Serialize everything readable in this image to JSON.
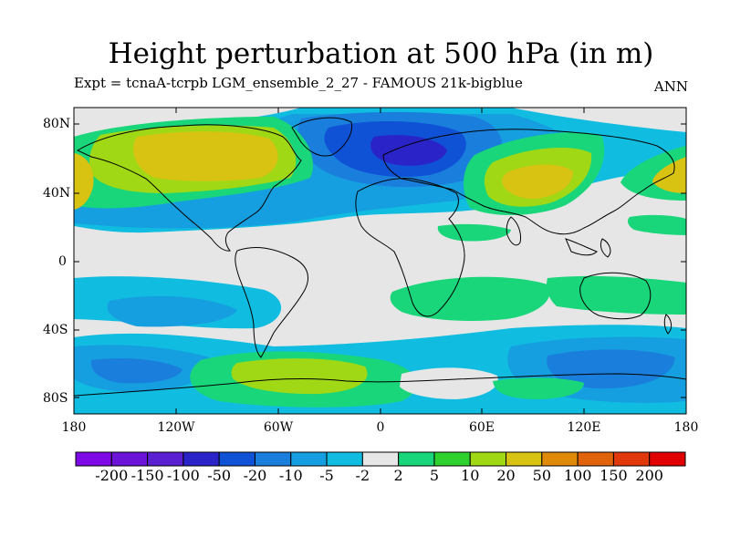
{
  "title": "Height perturbation at 500 hPa (in m)",
  "subtitle_left": "Expt = tcnaA-tcrpb",
  "subtitle_center": "LGM_ensemble_2_27 - FAMOUS 21k-bigblue",
  "subtitle_right": "ANN",
  "y_axis_labels": [
    "80N",
    "40N",
    "0",
    "40S",
    "80S"
  ],
  "x_axis_labels": [
    "180",
    "120W",
    "60W",
    "0",
    "60E",
    "120E",
    "180"
  ],
  "colorbar": {
    "labels": [
      "-200",
      "-150",
      "-100",
      "-50",
      "-20",
      "-10",
      "-5",
      "-2",
      "2",
      "5",
      "10",
      "20",
      "50",
      "100",
      "150",
      "200"
    ],
    "colors": [
      "#7d0ae6",
      "#6c13d8",
      "#5a1fd0",
      "#2a24c8",
      "#0f52d6",
      "#1a7fdc",
      "#169fe0",
      "#10bde0",
      "#e6e6e6",
      "#19d67a",
      "#2ed12e",
      "#a0d816",
      "#d8c212",
      "#e08a0a",
      "#e0620a",
      "#e0380a",
      "#e00000"
    ]
  },
  "colors": {
    "neutral": "#e6e6e6",
    "coastline": "#000000"
  }
}
